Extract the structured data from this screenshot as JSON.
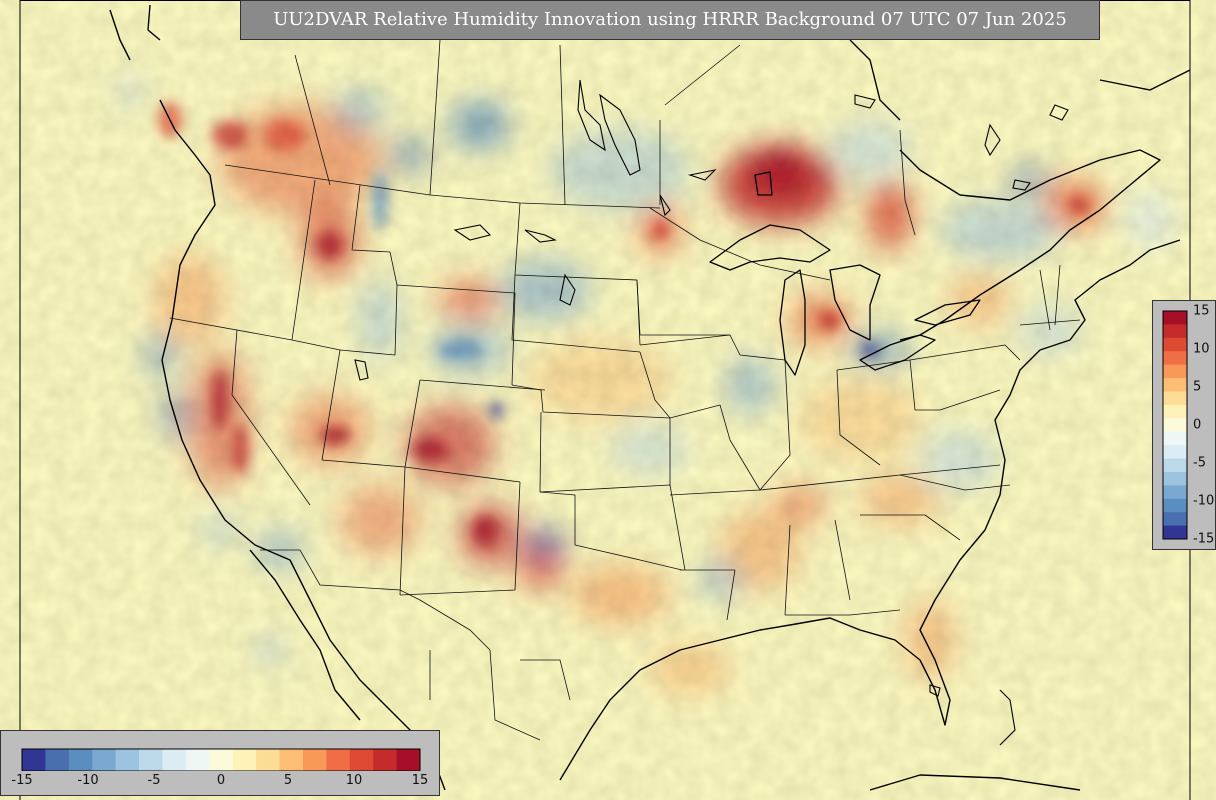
{
  "title": "UU2DVAR Relative Humidity Innovation using HRRR Background 07 UTC 07 Jun 2025",
  "colorbar": {
    "min": -15,
    "max": 15,
    "ticks_horizontal": [
      "-15",
      "-10",
      "-5",
      "0",
      "5",
      "10",
      "15"
    ],
    "ticks_vertical": [
      "15",
      "10",
      "5",
      "0",
      "-5",
      "-10",
      "-15"
    ],
    "colors": [
      "#313695",
      "#4a6fae",
      "#5a8dc0",
      "#7aa8d1",
      "#9cc3e0",
      "#bcd9ea",
      "#dbecf4",
      "#eef7f4",
      "#fbfbdc",
      "#fef2b8",
      "#fddc95",
      "#fdbd72",
      "#f99958",
      "#ef6e45",
      "#df4a34",
      "#c62b2c",
      "#a50f28"
    ]
  }
}
